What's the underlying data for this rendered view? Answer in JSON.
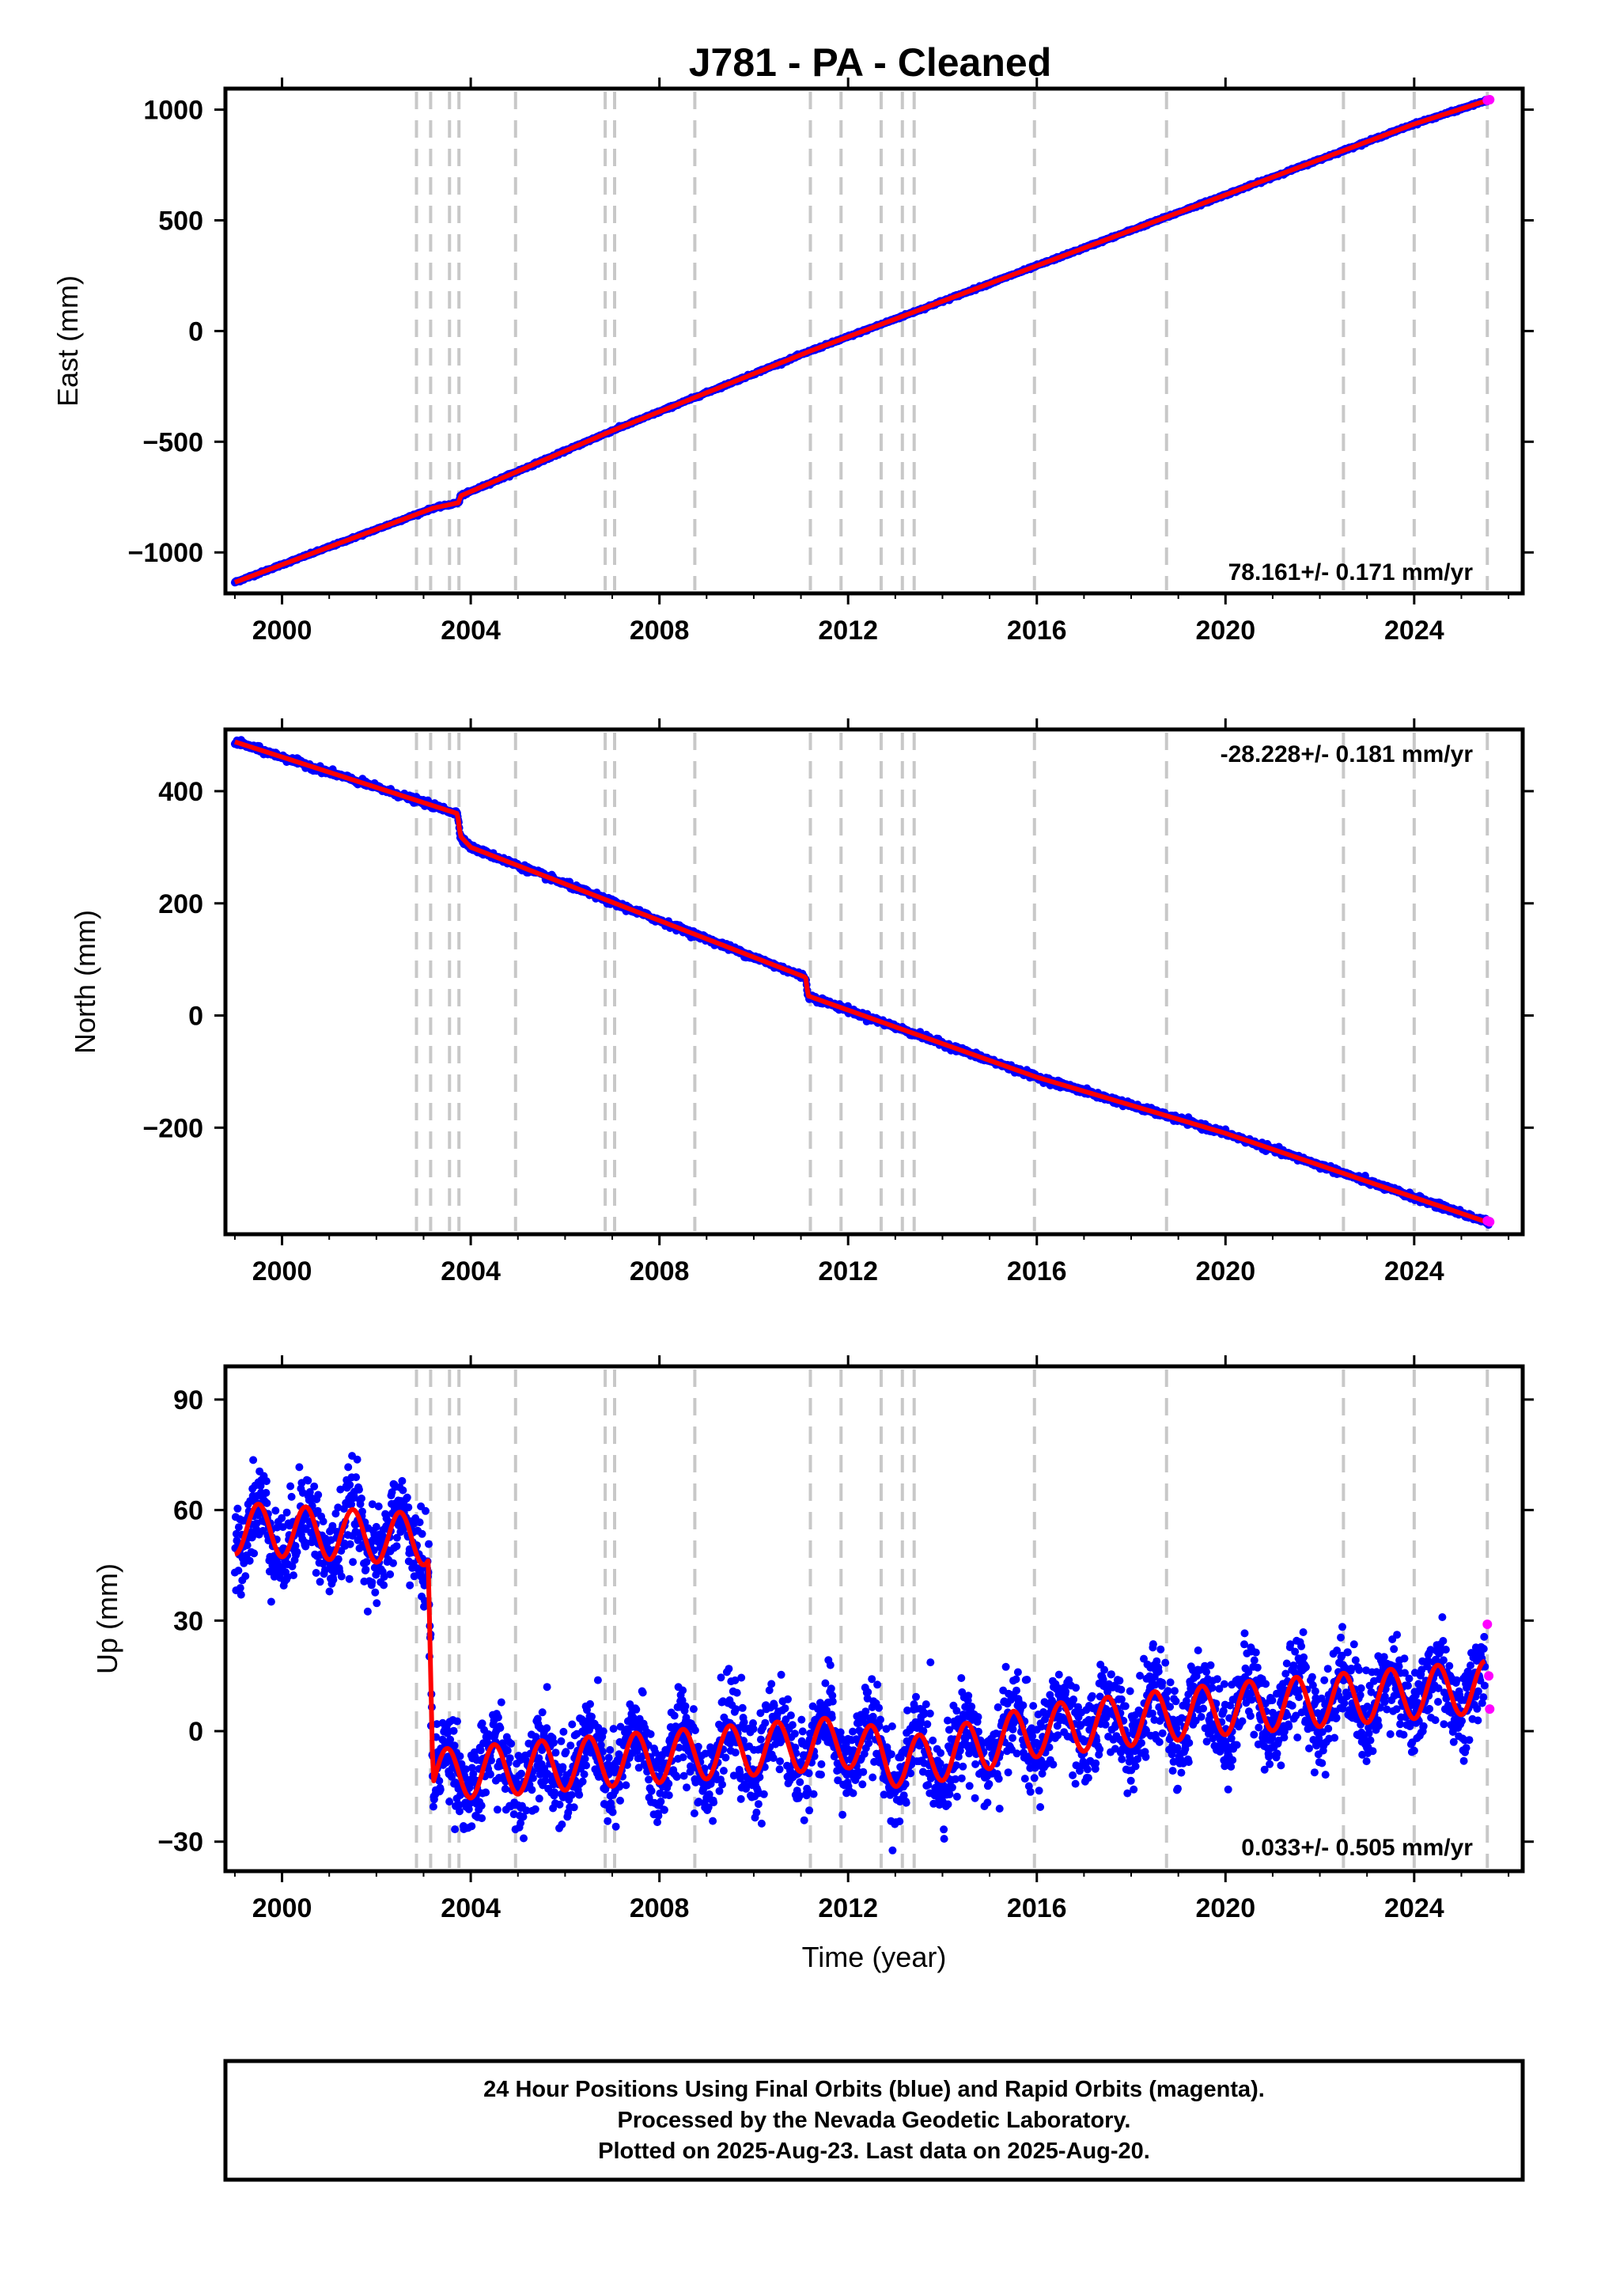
{
  "title": "J781  - PA - Cleaned",
  "colors": {
    "final": "#0000ff",
    "rapid": "#ff00ff",
    "model": "#ff0000",
    "event_line": "#c8c8c8",
    "frame": "#000000"
  },
  "chart_data": [
    {
      "type": "scatter",
      "id": "east",
      "ylabel": "East (mm)",
      "xlim": [
        1998.8,
        2026.3
      ],
      "ylim": [
        -1185,
        1095
      ],
      "x_ticks": [
        2000,
        2004,
        2008,
        2012,
        2016,
        2020,
        2024
      ],
      "x_tick_labels": [
        "2000",
        "2004",
        "2008",
        "2012",
        "2016",
        "2020",
        "2024"
      ],
      "y_ticks": [
        -1000,
        -500,
        0,
        500,
        1000
      ],
      "y_tick_labels": [
        "−1000",
        "−500",
        "0",
        "500",
        "1000"
      ],
      "rate_label": "78.161+/- 0.171 mm/yr",
      "rate_position": "bottom-right",
      "series": [
        {
          "kind": "final",
          "x": [
            1999.0,
            2003.2,
            2003.75,
            2003.78,
            2007.0,
            2011.2,
            2016.0,
            2020.0,
            2024.0,
            2025.6
          ],
          "y": [
            -1135,
            -800,
            -775,
            -745,
            -450,
            -90,
            295,
            615,
            935,
            1045
          ]
        },
        {
          "kind": "model",
          "x": [
            1999.0,
            2003.2,
            2003.75,
            2003.78,
            2007.0,
            2011.2,
            2016.0,
            2020.0,
            2024.0,
            2025.6
          ],
          "y": [
            -1135,
            -800,
            -775,
            -745,
            -450,
            -90,
            295,
            615,
            935,
            1045
          ]
        },
        {
          "kind": "rapid",
          "x": [
            2025.55,
            2025.6
          ],
          "y": [
            1042,
            1045
          ]
        }
      ]
    },
    {
      "type": "scatter",
      "id": "north",
      "ylabel": "North (mm)",
      "xlim": [
        1998.8,
        2026.3
      ],
      "ylim": [
        -390,
        510
      ],
      "x_ticks": [
        2000,
        2004,
        2008,
        2012,
        2016,
        2020,
        2024
      ],
      "x_tick_labels": [
        "2000",
        "2004",
        "2008",
        "2012",
        "2016",
        "2020",
        "2024"
      ],
      "y_ticks": [
        -200,
        0,
        200,
        400
      ],
      "y_tick_labels": [
        "−200",
        "0",
        "200",
        "400"
      ],
      "rate_label": "-28.228+/- 0.181 mm/yr",
      "rate_position": "top-right",
      "series": [
        {
          "kind": "final",
          "x": [
            1999.0,
            2003.72,
            2003.78,
            2004.0,
            2011.1,
            2011.15,
            2016.0,
            2020.0,
            2025.6
          ],
          "y": [
            488,
            360,
            320,
            300,
            68,
            35,
            -110,
            -210,
            -370
          ]
        },
        {
          "kind": "model",
          "x": [
            1999.0,
            2003.72,
            2003.78,
            2004.0,
            2011.1,
            2011.15,
            2016.0,
            2020.0,
            2025.6
          ],
          "y": [
            488,
            360,
            320,
            300,
            68,
            35,
            -110,
            -210,
            -370
          ]
        },
        {
          "kind": "rapid",
          "x": [
            2025.55,
            2025.6
          ],
          "y": [
            -366,
            -368
          ]
        }
      ]
    },
    {
      "type": "scatter",
      "id": "up",
      "ylabel": "Up (mm)",
      "xlabel": "Time (year)",
      "xlim": [
        1998.8,
        2026.3
      ],
      "ylim": [
        -38,
        99
      ],
      "x_ticks": [
        2000,
        2004,
        2008,
        2012,
        2016,
        2020,
        2024
      ],
      "x_tick_labels": [
        "2000",
        "2004",
        "2008",
        "2012",
        "2016",
        "2020",
        "2024"
      ],
      "y_ticks": [
        -30,
        0,
        30,
        60,
        90
      ],
      "y_tick_labels": [
        "−30",
        "0",
        "30",
        "60",
        "90"
      ],
      "rate_label": "0.033+/- 0.505 mm/yr",
      "rate_position": "bottom-right",
      "step": {
        "x": 2003.15,
        "before": 50,
        "after": -12
      },
      "seasonal_amplitude": 7,
      "series": [
        {
          "kind": "final",
          "x": [
            1999.0,
            2003.1,
            2003.2,
            2007.0,
            2012.0,
            2013.2,
            2016.0,
            2020.0,
            2025.5
          ],
          "y": [
            55,
            52,
            -12,
            -8,
            -3,
            -9,
            0,
            6,
            12
          ]
        },
        {
          "kind": "model",
          "x": [
            1999.0,
            2003.1,
            2003.2,
            2007.0,
            2012.0,
            2013.2,
            2016.0,
            2020.0,
            2025.5
          ],
          "y": [
            55,
            52,
            -12,
            -8,
            -3,
            -9,
            0,
            6,
            12
          ]
        },
        {
          "kind": "rapid",
          "x": [
            2025.55,
            2025.58,
            2025.6
          ],
          "y": [
            29,
            15,
            6
          ]
        }
      ]
    }
  ],
  "event_lines": [
    2002.85,
    2003.15,
    2003.55,
    2003.75,
    2004.95,
    2006.85,
    2007.05,
    2008.75,
    2011.2,
    2011.85,
    2012.7,
    2013.15,
    2013.4,
    2015.95,
    2018.75,
    2022.5,
    2024.0,
    2025.55
  ],
  "footer": {
    "line1": "24 Hour Positions Using Final Orbits (blue) and Rapid Orbits (magenta).",
    "line2": "Processed by the Nevada Geodetic Laboratory.",
    "line3": "Plotted on 2025-Aug-23. Last data on 2025-Aug-20."
  }
}
